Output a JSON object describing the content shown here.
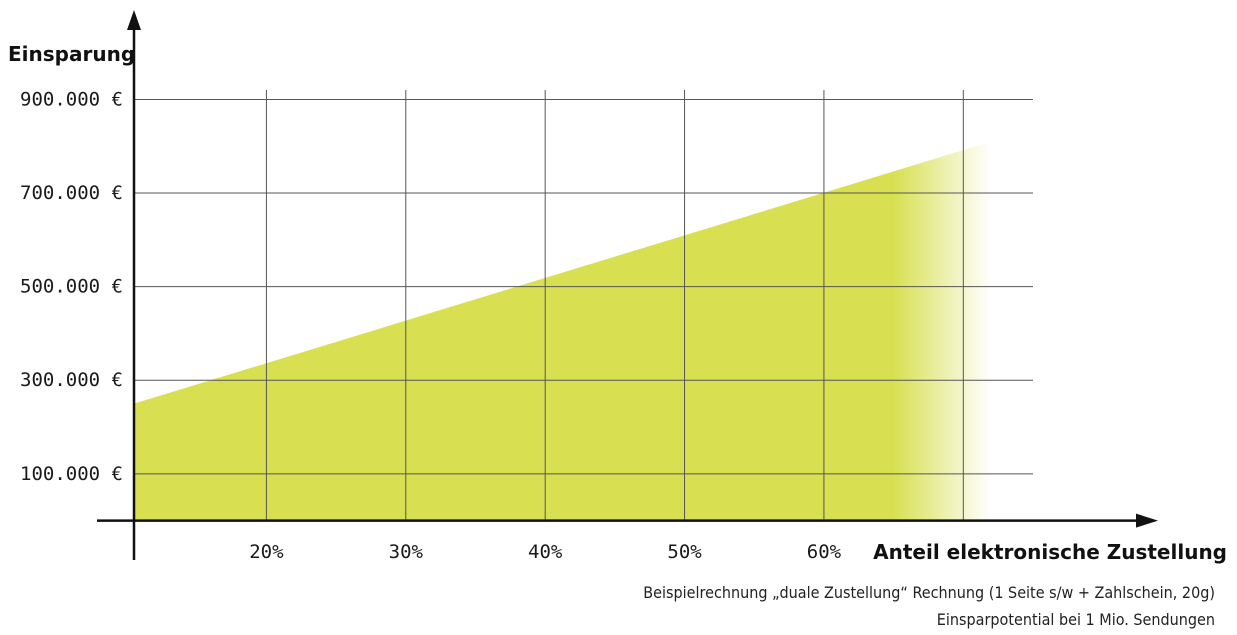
{
  "chart_data": {
    "type": "area",
    "ylabel": "Einsparung",
    "xlabel": "Anteil elektronische Zustellung",
    "x_ticks": [
      {
        "value": 20,
        "label": "20%"
      },
      {
        "value": 30,
        "label": "30%"
      },
      {
        "value": 40,
        "label": "40%"
      },
      {
        "value": 50,
        "label": "50%"
      },
      {
        "value": 60,
        "label": "60%"
      }
    ],
    "y_ticks": [
      {
        "value": 100000,
        "label": "100.000 €"
      },
      {
        "value": 300000,
        "label": "300.000 €"
      },
      {
        "value": 500000,
        "label": "500.000 €"
      },
      {
        "value": 700000,
        "label": "700.000 €"
      },
      {
        "value": 900000,
        "label": "900.000 €"
      }
    ],
    "x_gridlines": [
      20,
      30,
      40,
      50,
      60,
      70
    ],
    "y_gridlines": [
      100000,
      300000,
      500000,
      700000,
      900000
    ],
    "xlim": [
      10.5,
      75
    ],
    "ylim": [
      -20000,
      980000
    ],
    "series": [
      {
        "x": [
          10.5,
          72
        ],
        "values": [
          250000,
          810000
        ]
      }
    ],
    "fade_start_x": 65,
    "grid": true,
    "colors": {
      "area": "#d8e052",
      "grid": "#555555",
      "axis": "#111111"
    }
  },
  "notes": [
    "Beispielrechnung „duale Zustellung“ Rechnung (1 Seite s/w + Zahlschein, 20g)",
    "Einsparpotential bei 1 Mio. Sendungen"
  ]
}
